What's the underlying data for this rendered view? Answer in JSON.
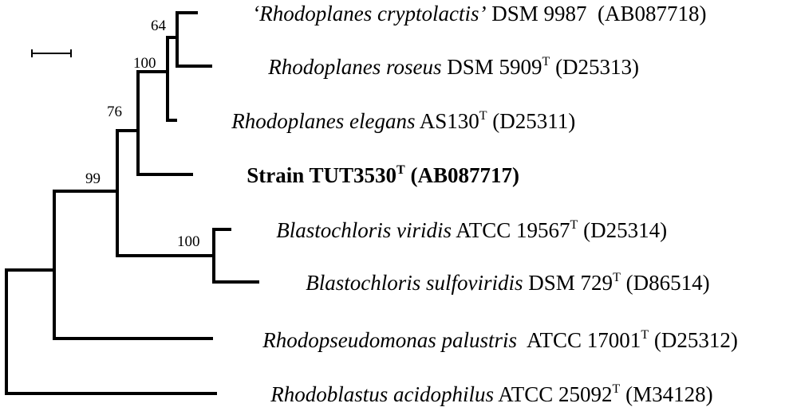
{
  "taxa": [
    {
      "id": "cryptolactis",
      "italic": "‘Rhodoplanes cryptolactis’",
      "strain": " DSM 9987 ",
      "type_strain": false,
      "accession": " (AB087718)",
      "bold": false
    },
    {
      "id": "roseus",
      "italic": "Rhodoplanes roseus",
      "strain": " DSM 5909",
      "type_strain": true,
      "accession": " (D25313)",
      "bold": false
    },
    {
      "id": "elegans",
      "italic": "Rhodoplanes elegans",
      "strain": " AS130",
      "type_strain": true,
      "accession": " (D25311)",
      "bold": false
    },
    {
      "id": "tut3530",
      "italic": "",
      "strain": "Strain TUT3530",
      "type_strain": true,
      "accession": " (AB087717)",
      "bold": true
    },
    {
      "id": "viridis",
      "italic": "Blastochloris viridis",
      "strain": " ATCC 19567",
      "type_strain": true,
      "accession": " (D25314)",
      "bold": false
    },
    {
      "id": "sulfoviridis",
      "italic": "Blastochloris sulfoviridis",
      "strain": " DSM 729",
      "type_strain": true,
      "accession": " (D86514)",
      "bold": false
    },
    {
      "id": "palustris",
      "italic": "Rhodopseudomonas palustris",
      "strain": "  ATCC 17001",
      "type_strain": true,
      "accession": " (D25312)",
      "bold": false
    },
    {
      "id": "acidophilus",
      "italic": "Rhodoblastus acidophilus",
      "strain": " ATCC 25092",
      "type_strain": true,
      "accession": " (M34128)",
      "bold": false
    }
  ],
  "type_strain_mark": "T",
  "bootstrap": [
    {
      "node": "n64",
      "value": "64"
    },
    {
      "node": "n100a",
      "value": "100"
    },
    {
      "node": "n76",
      "value": "76"
    },
    {
      "node": "n99",
      "value": "99"
    },
    {
      "node": "n100b",
      "value": "100"
    }
  ]
}
